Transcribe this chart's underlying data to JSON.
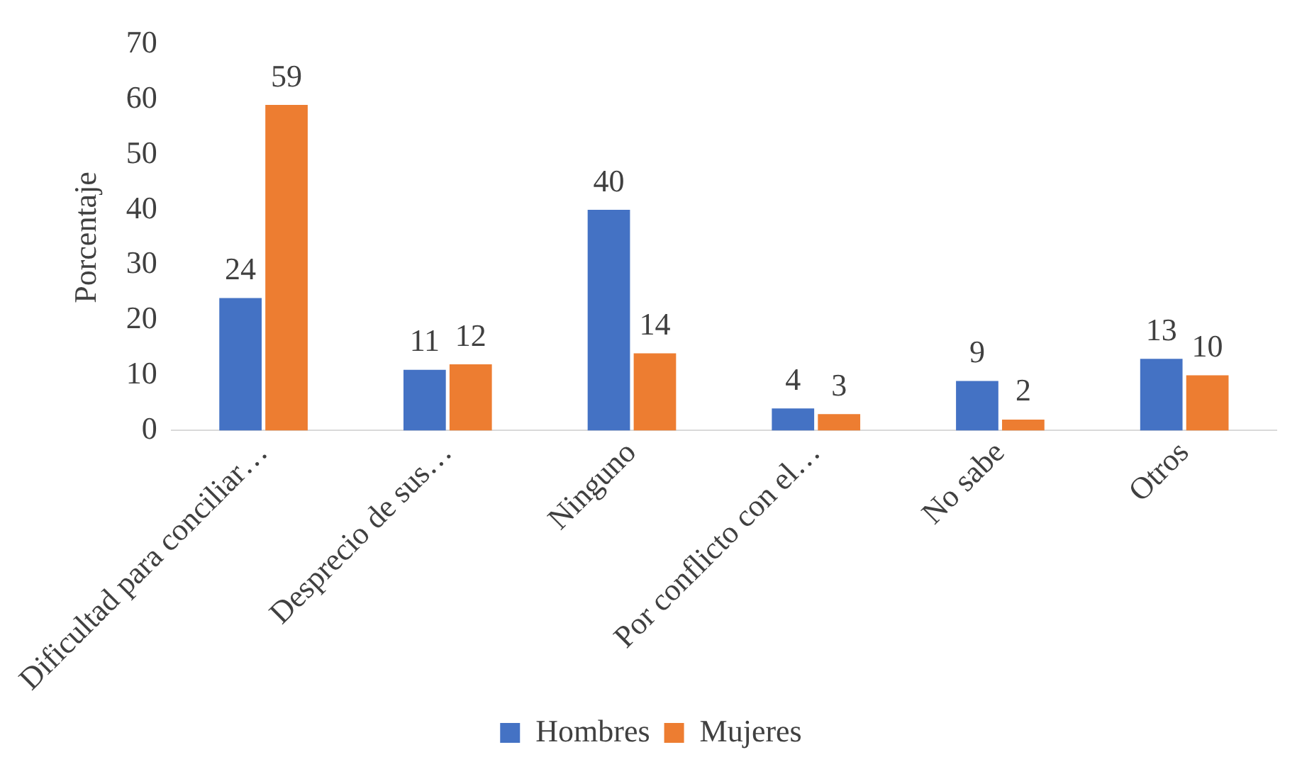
{
  "chart_data": {
    "type": "bar",
    "ylabel": "Porcentaje",
    "categories": [
      "Dificultad para conciliar…",
      "Desprecio de sus…",
      "Ninguno",
      "Por conflicto con el…",
      "No sabe",
      "Otros"
    ],
    "series": [
      {
        "name": "Hombres",
        "color": "#4472c4",
        "values": [
          24,
          11,
          40,
          4,
          9,
          13
        ]
      },
      {
        "name": "Mujeres",
        "color": "#ed7d31",
        "values": [
          59,
          12,
          14,
          3,
          2,
          10
        ]
      }
    ],
    "ylim": [
      0,
      70
    ],
    "yticks": [
      0,
      10,
      20,
      30,
      40,
      50,
      60,
      70
    ],
    "grid": false,
    "legend": "bottom",
    "data_labels": true
  }
}
